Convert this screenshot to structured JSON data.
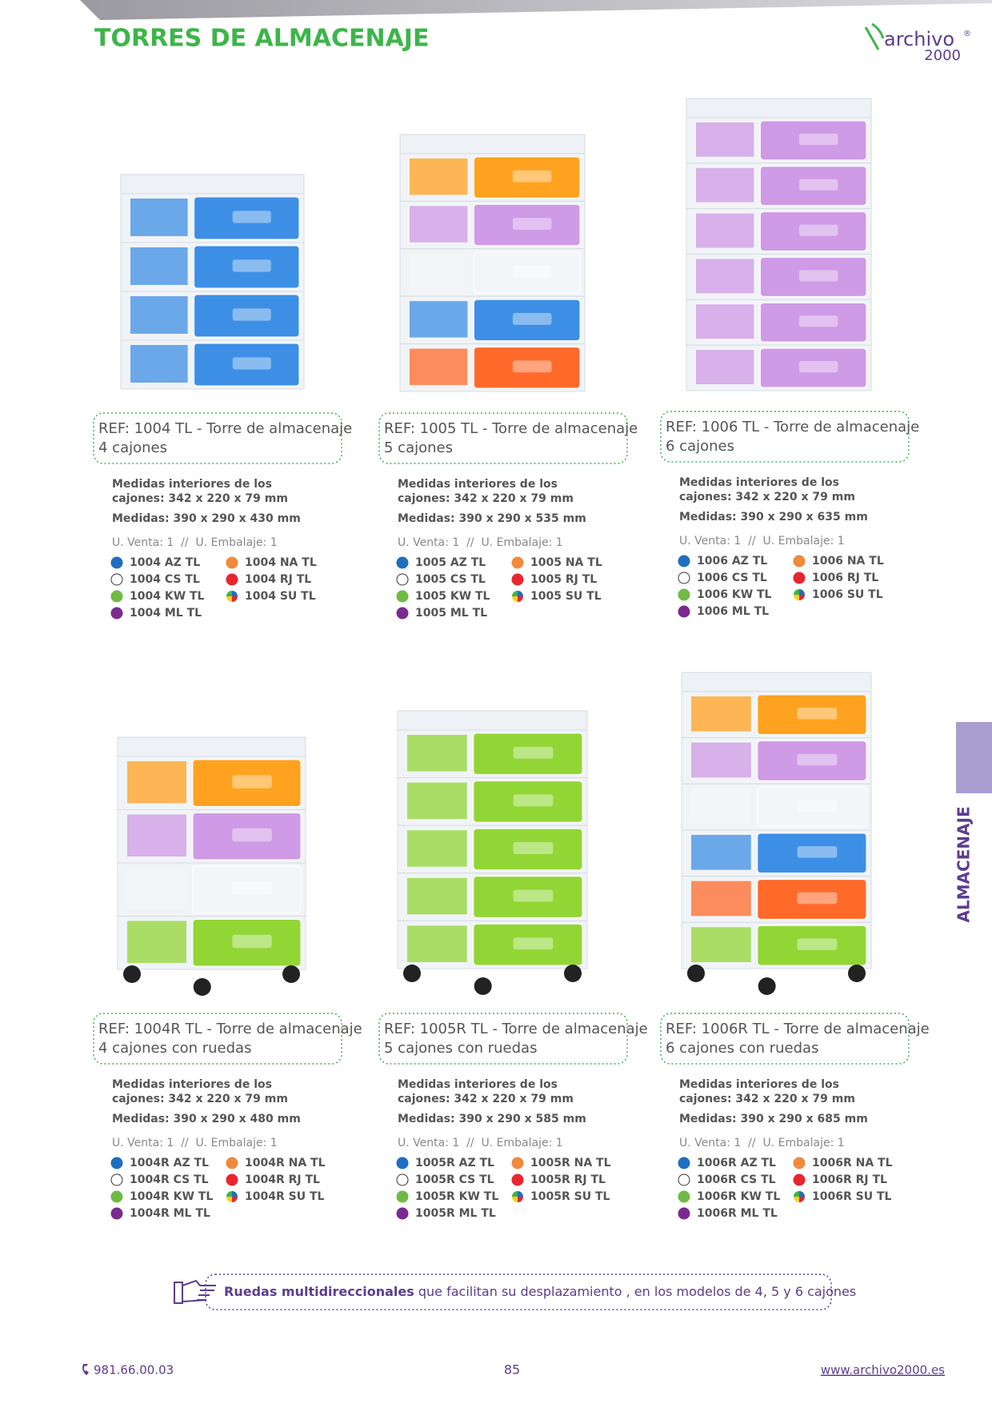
{
  "header": {
    "title": "TORRES DE ALMACENAJE",
    "logo": "archivo",
    "logo_mark": "®",
    "logo_sub": "2000"
  },
  "side_tab": "ALMACENAJE",
  "products": [
    {
      "ref": "REF: 1004 TL - Torre de almacenaje",
      "subtitle": "4 cajones",
      "interior": [
        "Medidas interiores de los",
        "cajones: 342 x 220 x 79 mm"
      ],
      "medidas": "Medidas: 390 x 290 x 430 mm",
      "units": "U. Venta: 1  //  U. Embalaje: 1",
      "variants": [
        "1004 AZ TL",
        "1004 CS TL",
        "1004 KW TL",
        "1004 ML TL",
        "1004 NA TL",
        "1004 RJ TL",
        "1004 SU TL"
      ]
    },
    {
      "ref": "REF: 1005 TL - Torre de almacenaje",
      "subtitle": "5 cajones",
      "interior": [
        "Medidas interiores de los",
        "cajones: 342 x 220 x 79 mm"
      ],
      "medidas": "Medidas: 390 x 290 x 535 mm",
      "units": "U. Venta: 1  //  U. Embalaje: 1",
      "variants": [
        "1005 AZ TL",
        "1005 CS TL",
        "1005 KW TL",
        "1005 ML TL",
        "1005 NA TL",
        "1005 RJ TL",
        "1005 SU TL"
      ]
    },
    {
      "ref": "REF: 1006 TL - Torre de almacenaje",
      "subtitle": "6 cajones",
      "interior": [
        "Medidas interiores de los",
        "cajones: 342 x 220 x 79 mm"
      ],
      "medidas": "Medidas: 390 x 290 x 635 mm",
      "units": "U. Venta: 1  //  U. Embalaje: 1",
      "variants": [
        "1006 AZ TL",
        "1006 CS TL",
        "1006 KW TL",
        "1006 ML TL",
        "1006 NA TL",
        "1006 RJ TL",
        "1006 SU TL"
      ]
    },
    {
      "ref": "REF: 1004R TL - Torre de almacenaje",
      "subtitle": "4 cajones con ruedas",
      "interior": [
        "Medidas interiores de los",
        "cajones: 342 x 220 x 79 mm"
      ],
      "medidas": "Medidas: 390 x 290 x 480 mm",
      "units": "U. Venta: 1  //  U. Embalaje: 1",
      "variants": [
        "1004R AZ TL",
        "1004R CS TL",
        "1004R KW TL",
        "1004R ML TL",
        "1004R NA TL",
        "1004R RJ TL",
        "1004R SU TL"
      ]
    },
    {
      "ref": "REF: 1005R TL - Torre de almacenaje",
      "subtitle": "5 cajones con ruedas",
      "interior": [
        "Medidas interiores de los",
        "cajones: 342 x 220 x 79 mm"
      ],
      "medidas": "Medidas: 390 x 290 x 585 mm",
      "units": "U. Venta: 1  //  U. Embalaje: 1",
      "variants": [
        "1005R AZ TL",
        "1005R CS TL",
        "1005R KW TL",
        "1005R ML TL",
        "1005R NA TL",
        "1005R RJ TL",
        "1005R SU TL"
      ]
    },
    {
      "ref": "REF: 1006R TL - Torre de almacenaje",
      "subtitle": "6 cajones con ruedas",
      "interior": [
        "Medidas interiores de los",
        "cajones: 342 x 220 x 79 mm"
      ],
      "medidas": "Medidas: 390 x 290 x 685 mm",
      "units": "U. Venta: 1  //  U. Embalaje: 1",
      "variants": [
        "1006R AZ TL",
        "1006R CS TL",
        "1006R KW TL",
        "1006R ML TL",
        "1006R NA TL",
        "1006R RJ TL",
        "1006R SU TL"
      ]
    }
  ],
  "note": {
    "bold": "Ruedas multidireccionales",
    "text": " que facilitan su desplazamiento , en los modelos de 4, 5 y 6 cajones"
  },
  "footer": {
    "phone": "981.66.00.03",
    "page": "85",
    "url": "www.archivo2000.es"
  }
}
